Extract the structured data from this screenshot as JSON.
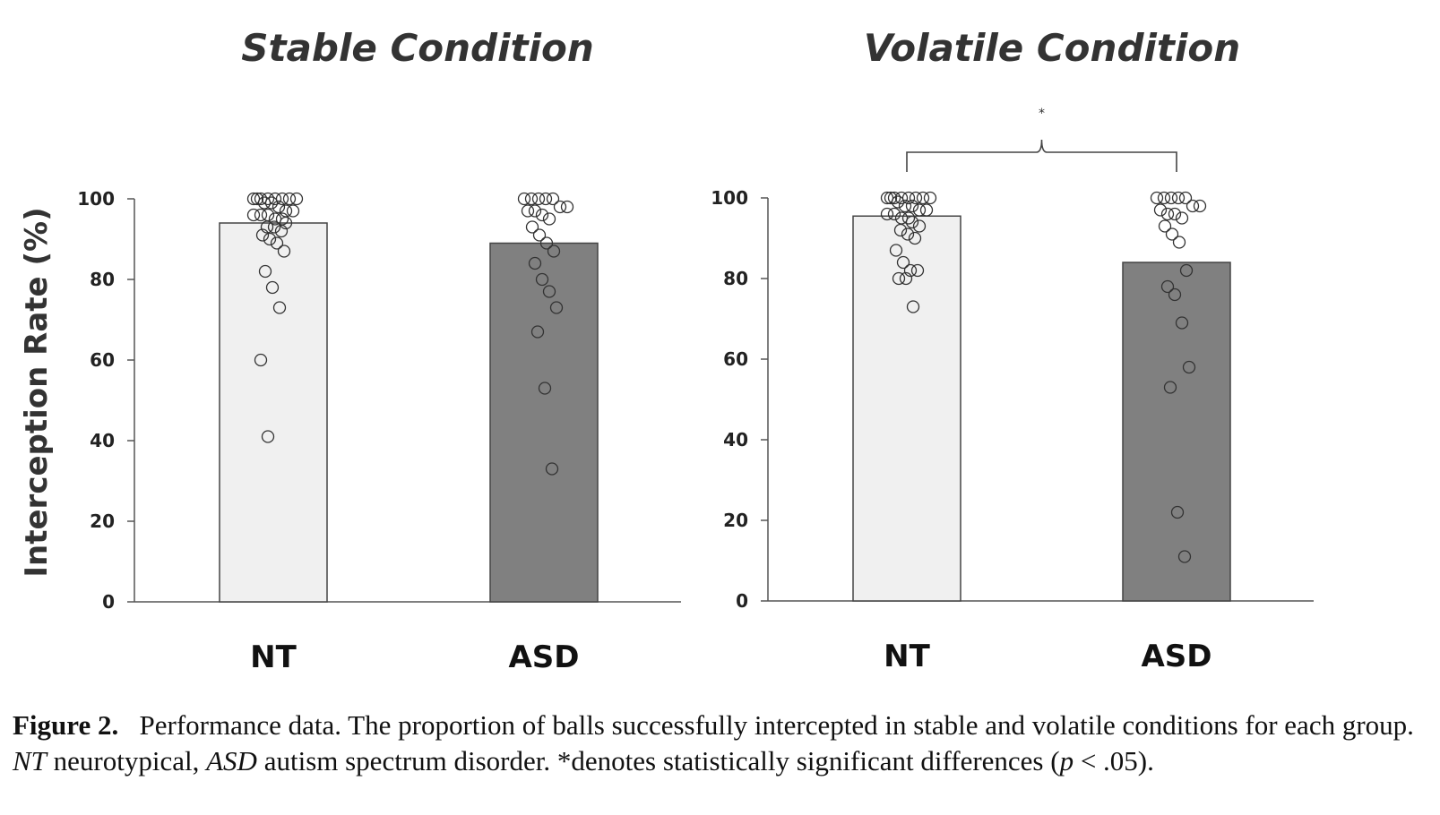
{
  "chart_data": [
    {
      "type": "bar",
      "title": "Stable Condition",
      "ylabel": "Interception Rate (%)",
      "categories": [
        "NT",
        "ASD"
      ],
      "values": [
        94,
        89
      ],
      "bar_colors": [
        "#f0f0f0",
        "#808080"
      ],
      "ylim": [
        0,
        100
      ],
      "yticks": [
        "0",
        "20",
        "40",
        "60",
        "80",
        "100"
      ],
      "points": [
        [
          100,
          100,
          100,
          100,
          100,
          100,
          100,
          100,
          99,
          99,
          98,
          97,
          97,
          96,
          96,
          96,
          95,
          95,
          94,
          93,
          93,
          92,
          91,
          90,
          89,
          87,
          82,
          78,
          73,
          60,
          41
        ],
        [
          100,
          100,
          100,
          100,
          100,
          98,
          98,
          97,
          97,
          96,
          95,
          93,
          91,
          89,
          87,
          84,
          80,
          77,
          73,
          67,
          53,
          33
        ]
      ],
      "significance": null
    },
    {
      "type": "bar",
      "title": "Volatile Condition",
      "ylabel": "",
      "categories": [
        "NT",
        "ASD"
      ],
      "values": [
        95.5,
        84
      ],
      "bar_colors": [
        "#f0f0f0",
        "#808080"
      ],
      "ylim": [
        0,
        100
      ],
      "yticks": [
        "0",
        "20",
        "40",
        "60",
        "80",
        "100"
      ],
      "points": [
        [
          100,
          100,
          100,
          100,
          100,
          100,
          100,
          100,
          99,
          98,
          98,
          97,
          97,
          96,
          96,
          95,
          95,
          94,
          93,
          92,
          91,
          90,
          87,
          84,
          82,
          82,
          80,
          80,
          73
        ],
        [
          100,
          100,
          100,
          100,
          100,
          98,
          98,
          97,
          96,
          96,
          95,
          93,
          91,
          89,
          82,
          78,
          76,
          69,
          58,
          53,
          22,
          11
        ]
      ],
      "significance": "*"
    }
  ],
  "caption": {
    "label": "Figure 2.",
    "text_1": "Performance data. The proportion of balls successfully intercepted in stable and volatile conditions for each group. ",
    "abbr_1": "NT",
    "text_2": " neurotypical, ",
    "abbr_2": "ASD",
    "text_3": " autism spectrum disorder. *denotes statistically significant differences (",
    "p_symbol": "p",
    "text_4": " < .05)."
  }
}
